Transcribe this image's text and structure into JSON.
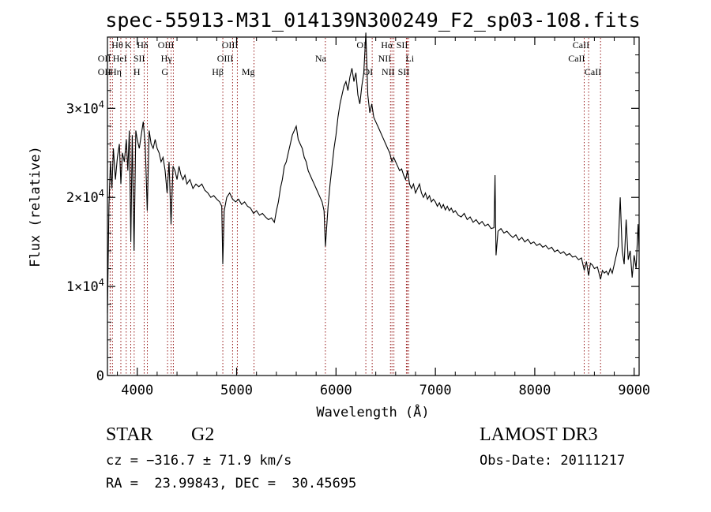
{
  "chart_data": {
    "type": "line",
    "title": "spec-55913-M31_014139N300249_F2_sp03-108.fits",
    "xlabel": "Wavelength (Å)",
    "ylabel": "Flux (relative)",
    "xlim": [
      3700,
      9050
    ],
    "ylim": [
      0,
      38000
    ],
    "xticks": [
      4000,
      5000,
      6000,
      7000,
      8000,
      9000
    ],
    "xtick_labels": [
      "4000",
      "5000",
      "6000",
      "7000",
      "8000",
      "9000"
    ],
    "yticks": [
      0,
      10000,
      20000,
      30000
    ],
    "ytick_labels": [
      {
        "mantissa": "0",
        "exponent": ""
      },
      {
        "mantissa": "1×10",
        "exponent": "4"
      },
      {
        "mantissa": "2×10",
        "exponent": "4"
      },
      {
        "mantissa": "3×10",
        "exponent": "4"
      }
    ],
    "series": [
      {
        "values": [
          [
            3700,
            7000
          ],
          [
            3715,
            19000
          ],
          [
            3730,
            24000
          ],
          [
            3745,
            21000
          ],
          [
            3760,
            25500
          ],
          [
            3780,
            22000
          ],
          [
            3800,
            24500
          ],
          [
            3820,
            26000
          ],
          [
            3835,
            21500
          ],
          [
            3850,
            25000
          ],
          [
            3870,
            24000
          ],
          [
            3890,
            26500
          ],
          [
            3905,
            23000
          ],
          [
            3920,
            27500
          ],
          [
            3935,
            15000
          ],
          [
            3950,
            27000
          ],
          [
            3968,
            14000
          ],
          [
            3985,
            27500
          ],
          [
            4000,
            26500
          ],
          [
            4020,
            25500
          ],
          [
            4040,
            27000
          ],
          [
            4060,
            28500
          ],
          [
            4080,
            26000
          ],
          [
            4101,
            18500
          ],
          [
            4120,
            27500
          ],
          [
            4140,
            26000
          ],
          [
            4160,
            25500
          ],
          [
            4180,
            26500
          ],
          [
            4200,
            25500
          ],
          [
            4220,
            25000
          ],
          [
            4240,
            24000
          ],
          [
            4260,
            24500
          ],
          [
            4280,
            23000
          ],
          [
            4300,
            20500
          ],
          [
            4320,
            24000
          ],
          [
            4340,
            17000
          ],
          [
            4360,
            23500
          ],
          [
            4380,
            23000
          ],
          [
            4400,
            22000
          ],
          [
            4420,
            23500
          ],
          [
            4440,
            22500
          ],
          [
            4460,
            22000
          ],
          [
            4480,
            22500
          ],
          [
            4500,
            21500
          ],
          [
            4530,
            22000
          ],
          [
            4560,
            21000
          ],
          [
            4590,
            21500
          ],
          [
            4620,
            21200
          ],
          [
            4650,
            21500
          ],
          [
            4680,
            20800
          ],
          [
            4710,
            20500
          ],
          [
            4740,
            20000
          ],
          [
            4770,
            20200
          ],
          [
            4800,
            19800
          ],
          [
            4830,
            19500
          ],
          [
            4850,
            19000
          ],
          [
            4861,
            12500
          ],
          [
            4875,
            18500
          ],
          [
            4900,
            20000
          ],
          [
            4930,
            20500
          ],
          [
            4960,
            19800
          ],
          [
            4990,
            19500
          ],
          [
            5020,
            19800
          ],
          [
            5050,
            19200
          ],
          [
            5080,
            19500
          ],
          [
            5110,
            19000
          ],
          [
            5140,
            18800
          ],
          [
            5170,
            18200
          ],
          [
            5200,
            18500
          ],
          [
            5230,
            18000
          ],
          [
            5260,
            18200
          ],
          [
            5290,
            17800
          ],
          [
            5320,
            17500
          ],
          [
            5350,
            17700
          ],
          [
            5380,
            17200
          ],
          [
            5400,
            18500
          ],
          [
            5420,
            19500
          ],
          [
            5440,
            21000
          ],
          [
            5460,
            22000
          ],
          [
            5480,
            23500
          ],
          [
            5500,
            24000
          ],
          [
            5520,
            25000
          ],
          [
            5540,
            26000
          ],
          [
            5560,
            27000
          ],
          [
            5580,
            27500
          ],
          [
            5600,
            28000
          ],
          [
            5620,
            26500
          ],
          [
            5640,
            26000
          ],
          [
            5660,
            25500
          ],
          [
            5680,
            24500
          ],
          [
            5700,
            24000
          ],
          [
            5720,
            23000
          ],
          [
            5740,
            22500
          ],
          [
            5760,
            22000
          ],
          [
            5780,
            21500
          ],
          [
            5800,
            21000
          ],
          [
            5820,
            20500
          ],
          [
            5840,
            20000
          ],
          [
            5860,
            19500
          ],
          [
            5880,
            18500
          ],
          [
            5893,
            14500
          ],
          [
            5905,
            16500
          ],
          [
            5920,
            19000
          ],
          [
            5940,
            21500
          ],
          [
            5960,
            23500
          ],
          [
            5980,
            25500
          ],
          [
            6000,
            27000
          ],
          [
            6020,
            29000
          ],
          [
            6040,
            30500
          ],
          [
            6060,
            31500
          ],
          [
            6080,
            32500
          ],
          [
            6100,
            33000
          ],
          [
            6120,
            32000
          ],
          [
            6140,
            33500
          ],
          [
            6160,
            34500
          ],
          [
            6180,
            33000
          ],
          [
            6200,
            34000
          ],
          [
            6220,
            31500
          ],
          [
            6240,
            30500
          ],
          [
            6260,
            32500
          ],
          [
            6280,
            34000
          ],
          [
            6300,
            38500
          ],
          [
            6320,
            31500
          ],
          [
            6340,
            29500
          ],
          [
            6360,
            30500
          ],
          [
            6380,
            29000
          ],
          [
            6400,
            28500
          ],
          [
            6420,
            28000
          ],
          [
            6440,
            27500
          ],
          [
            6460,
            27000
          ],
          [
            6480,
            26500
          ],
          [
            6500,
            26000
          ],
          [
            6520,
            25500
          ],
          [
            6540,
            25000
          ],
          [
            6563,
            24000
          ],
          [
            6580,
            24500
          ],
          [
            6600,
            24000
          ],
          [
            6620,
            23500
          ],
          [
            6640,
            23000
          ],
          [
            6660,
            23200
          ],
          [
            6680,
            22500
          ],
          [
            6700,
            22000
          ],
          [
            6720,
            23000
          ],
          [
            6740,
            21500
          ],
          [
            6760,
            21000
          ],
          [
            6780,
            21500
          ],
          [
            6800,
            20500
          ],
          [
            6820,
            21000
          ],
          [
            6840,
            21500
          ],
          [
            6860,
            20500
          ],
          [
            6880,
            20000
          ],
          [
            6900,
            20500
          ],
          [
            6920,
            19800
          ],
          [
            6940,
            20200
          ],
          [
            6960,
            19500
          ],
          [
            6980,
            19800
          ],
          [
            7000,
            19500
          ],
          [
            7020,
            19000
          ],
          [
            7040,
            19400
          ],
          [
            7060,
            18800
          ],
          [
            7080,
            19200
          ],
          [
            7100,
            18600
          ],
          [
            7120,
            19000
          ],
          [
            7140,
            18500
          ],
          [
            7160,
            18800
          ],
          [
            7180,
            18300
          ],
          [
            7200,
            18500
          ],
          [
            7230,
            18000
          ],
          [
            7260,
            17800
          ],
          [
            7290,
            18200
          ],
          [
            7320,
            17500
          ],
          [
            7350,
            17800
          ],
          [
            7380,
            17200
          ],
          [
            7410,
            17500
          ],
          [
            7440,
            17000
          ],
          [
            7470,
            17300
          ],
          [
            7500,
            16800
          ],
          [
            7530,
            17000
          ],
          [
            7560,
            16500
          ],
          [
            7590,
            16600
          ],
          [
            7600,
            22500
          ],
          [
            7610,
            13500
          ],
          [
            7630,
            16200
          ],
          [
            7660,
            16500
          ],
          [
            7690,
            16000
          ],
          [
            7720,
            16200
          ],
          [
            7750,
            15800
          ],
          [
            7780,
            15500
          ],
          [
            7810,
            15800
          ],
          [
            7840,
            15200
          ],
          [
            7870,
            15500
          ],
          [
            7900,
            15000
          ],
          [
            7930,
            15300
          ],
          [
            7960,
            14800
          ],
          [
            7990,
            15000
          ],
          [
            8020,
            14600
          ],
          [
            8050,
            14800
          ],
          [
            8080,
            14400
          ],
          [
            8110,
            14600
          ],
          [
            8140,
            14200
          ],
          [
            8170,
            14400
          ],
          [
            8200,
            13900
          ],
          [
            8230,
            14100
          ],
          [
            8260,
            13700
          ],
          [
            8290,
            13900
          ],
          [
            8320,
            13500
          ],
          [
            8350,
            13700
          ],
          [
            8380,
            13300
          ],
          [
            8410,
            13400
          ],
          [
            8440,
            13000
          ],
          [
            8470,
            13200
          ],
          [
            8498,
            11800
          ],
          [
            8520,
            12800
          ],
          [
            8542,
            11200
          ],
          [
            8560,
            12600
          ],
          [
            8580,
            12400
          ],
          [
            8600,
            12000
          ],
          [
            8630,
            12200
          ],
          [
            8662,
            10800
          ],
          [
            8680,
            11800
          ],
          [
            8700,
            11500
          ],
          [
            8720,
            11700
          ],
          [
            8740,
            11300
          ],
          [
            8760,
            12000
          ],
          [
            8780,
            11500
          ],
          [
            8800,
            12500
          ],
          [
            8820,
            13500
          ],
          [
            8840,
            14500
          ],
          [
            8860,
            20000
          ],
          [
            8880,
            14000
          ],
          [
            8900,
            12500
          ],
          [
            8920,
            17500
          ],
          [
            8940,
            13000
          ],
          [
            8960,
            14000
          ],
          [
            8980,
            11000
          ],
          [
            9000,
            13500
          ],
          [
            9020,
            12000
          ],
          [
            9040,
            17000
          ],
          [
            9050,
            14000
          ]
        ]
      }
    ],
    "lines": [
      {
        "label": "OII",
        "wl": 3727,
        "row": 3,
        "anchor": "end"
      },
      {
        "label": "Hθ",
        "wl": 3750,
        "row": 1,
        "anchor": "start"
      },
      {
        "label": "Hη",
        "wl": 3835,
        "row": 3,
        "anchor": "end"
      },
      {
        "label": "OII",
        "wl": 3727,
        "row": 2,
        "anchor": "end"
      },
      {
        "label": "HeI",
        "wl": 3889,
        "row": 2,
        "anchor": "end"
      },
      {
        "label": "K",
        "wl": 3934,
        "row": 1,
        "anchor": "end"
      },
      {
        "label": "SII",
        "wl": 4070,
        "row": 2,
        "anchor": "end"
      },
      {
        "label": "H",
        "wl": 3969,
        "row": 3,
        "anchor": "start"
      },
      {
        "label": "Hδ",
        "wl": 4102,
        "row": 1,
        "anchor": "end"
      },
      {
        "label": "OIII",
        "wl": 4363,
        "row": 1,
        "anchor": "end"
      },
      {
        "label": "Hγ",
        "wl": 4341,
        "row": 2,
        "anchor": "end"
      },
      {
        "label": "G",
        "wl": 4305,
        "row": 3,
        "anchor": "end"
      },
      {
        "label": "Hβ",
        "wl": 4861,
        "row": 3,
        "anchor": "end"
      },
      {
        "label": "OIII",
        "wl": 4959,
        "row": 2,
        "anchor": "end"
      },
      {
        "label": "OIII",
        "wl": 5007,
        "row": 1,
        "anchor": "end"
      },
      {
        "label": "Mg",
        "wl": 5175,
        "row": 3,
        "anchor": "end"
      },
      {
        "label": "Na",
        "wl": 5893,
        "row": 2,
        "anchor": "end"
      },
      {
        "label": "OI",
        "wl": 6300,
        "row": 1,
        "anchor": "end"
      },
      {
        "label": "OI",
        "wl": 6364,
        "row": 3,
        "anchor": "end"
      },
      {
        "label": "NII",
        "wl": 6548,
        "row": 2,
        "anchor": "end"
      },
      {
        "label": "Hα",
        "wl": 6563,
        "row": 1,
        "anchor": "end"
      },
      {
        "label": "NII",
        "wl": 6583,
        "row": 3,
        "anchor": "end"
      },
      {
        "label": "SII",
        "wl": 6716,
        "row": 1,
        "anchor": "end"
      },
      {
        "label": "Li",
        "wl": 6708,
        "row": 2,
        "anchor": "start"
      },
      {
        "label": "SII",
        "wl": 6731,
        "row": 3,
        "anchor": "end"
      },
      {
        "label": "CaII",
        "wl": 8498,
        "row": 2,
        "anchor": "end"
      },
      {
        "label": "CaII",
        "wl": 8542,
        "row": 1,
        "anchor": "end"
      },
      {
        "label": "CaII",
        "wl": 8662,
        "row": 3,
        "anchor": "end"
      }
    ],
    "line_color": "#8b0000",
    "grid": false
  },
  "info": {
    "object_class": "STAR",
    "subclass": "G2",
    "survey": "LAMOST DR3",
    "cz": "cz = −316.7 ± 71.9 km/s",
    "obs_date": "Obs-Date: 20111217",
    "coords": "RA =  23.99843, DEC =  30.45695"
  }
}
